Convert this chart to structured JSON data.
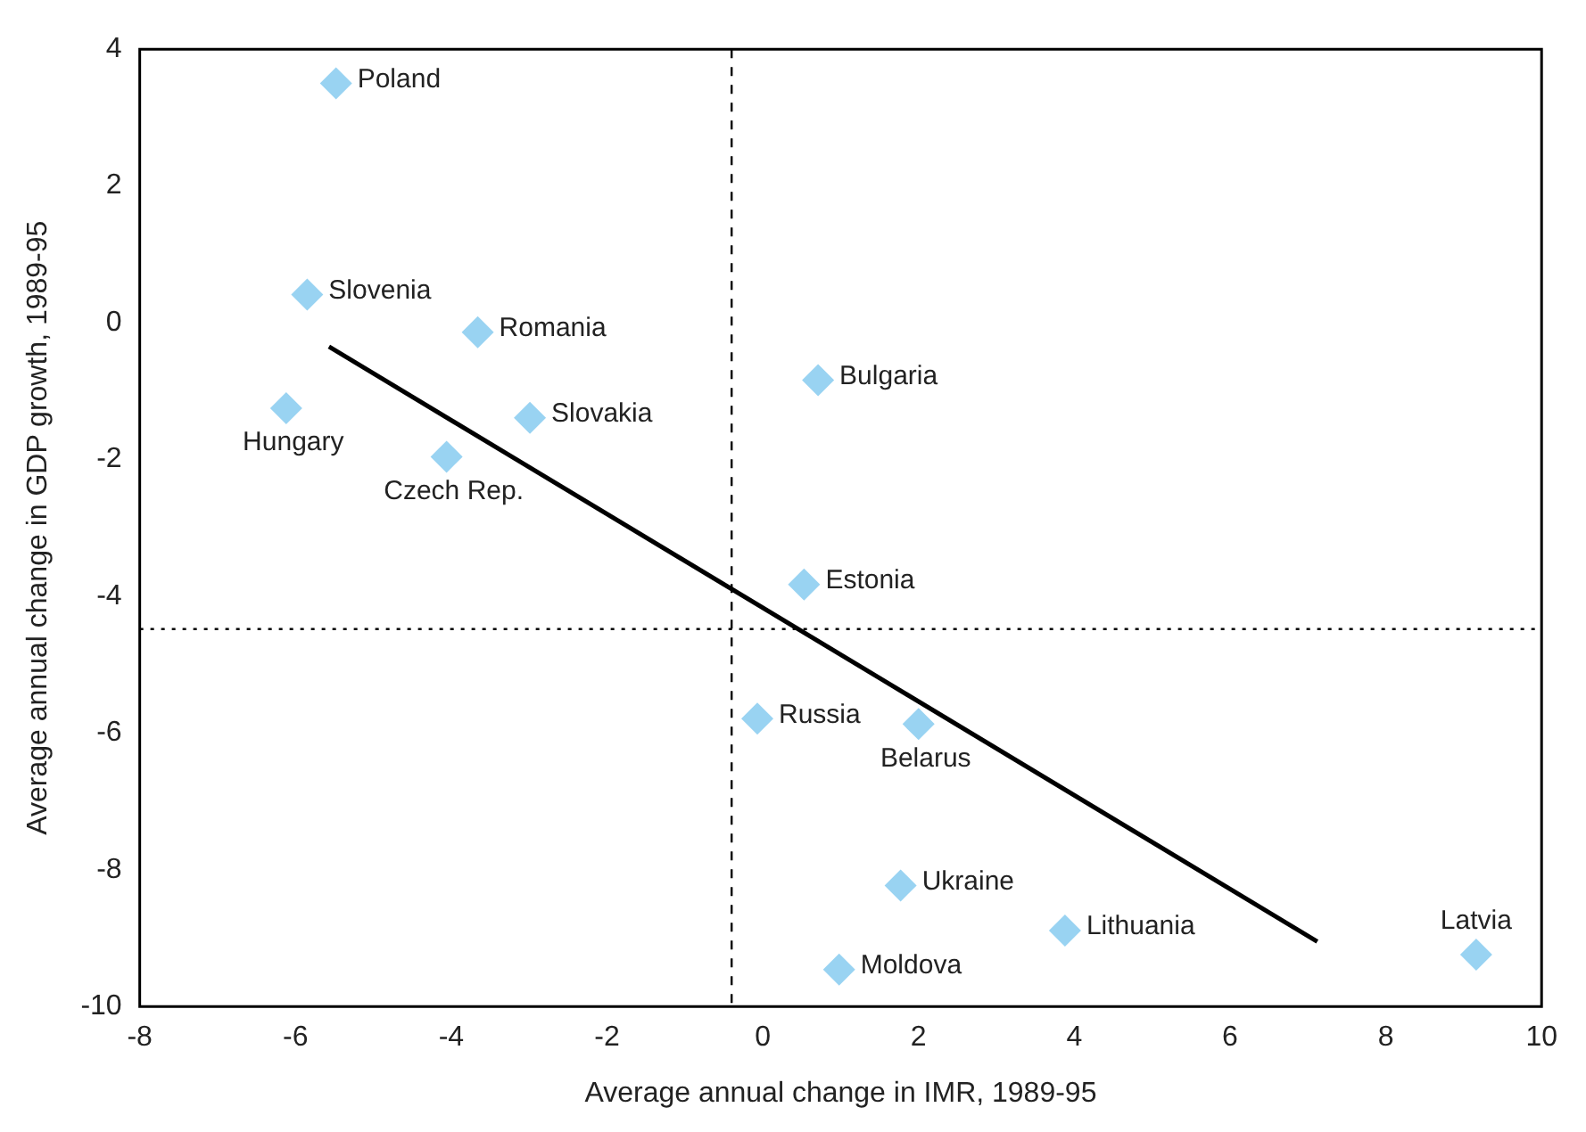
{
  "chart_data": {
    "type": "scatter",
    "xlabel": "Average annual change in IMR, 1989-95",
    "ylabel": "Average annual change in GDP growth, 1989-95",
    "xlim": [
      -8,
      10
    ],
    "xticks": [
      -8,
      -6,
      -4,
      -2,
      0,
      2,
      4,
      6,
      8,
      10
    ],
    "ylim": [
      -10,
      4
    ],
    "yticks": [
      -10,
      -8,
      -6,
      -4,
      -2,
      0,
      2,
      4
    ],
    "grid": false,
    "legend": false,
    "marker": "diamond",
    "series": [
      {
        "color": "#99d3f2",
        "x": [
          -5.48,
          -5.85,
          -3.66,
          -6.12,
          -2.99,
          -4.06,
          0.71,
          0.53,
          -0.07,
          2.0,
          1.77,
          3.88,
          0.98,
          9.16
        ],
        "values": [
          3.5,
          0.41,
          -0.14,
          -1.25,
          -1.39,
          -1.96,
          -0.84,
          -3.83,
          -5.79,
          -5.87,
          -8.23,
          -8.89,
          -9.46,
          -9.24
        ]
      },
      {
        "type": "line",
        "color": "#000000",
        "marker": "none",
        "line_style": "solid",
        "x": [
          -5.57,
          7.12
        ],
        "values": [
          -0.35,
          -9.05
        ]
      }
    ],
    "ref_lines": [
      {
        "axis": "x",
        "value": -0.4,
        "color": "#000000",
        "line_style": "dashed"
      },
      {
        "axis": "y",
        "value": -4.48,
        "color": "#000000",
        "line_style": "dotted"
      }
    ],
    "annotations": [
      {
        "text": "Poland",
        "x": -5.48,
        "y": 3.5
      },
      {
        "text": "Slovenia",
        "x": -5.85,
        "y": 0.41
      },
      {
        "text": "Romania",
        "x": -3.66,
        "y": -0.14
      },
      {
        "text": "Hungary",
        "x": -6.12,
        "y": -1.25
      },
      {
        "text": "Slovakia",
        "x": -2.99,
        "y": -1.39
      },
      {
        "text": "Czech Rep.",
        "x": -4.06,
        "y": -1.96
      },
      {
        "text": "Bulgaria",
        "x": 0.71,
        "y": -0.84
      },
      {
        "text": "Estonia",
        "x": 0.53,
        "y": -3.83
      },
      {
        "text": "Russia",
        "x": -0.07,
        "y": -5.79
      },
      {
        "text": "Belarus",
        "x": 2.0,
        "y": -5.87
      },
      {
        "text": "Ukraine",
        "x": 1.77,
        "y": -8.23
      },
      {
        "text": "Lithuania",
        "x": 3.88,
        "y": -8.89
      },
      {
        "text": "Moldova",
        "x": 0.98,
        "y": -9.46
      },
      {
        "text": "Latvia",
        "x": 9.16,
        "y": -9.24
      }
    ]
  }
}
